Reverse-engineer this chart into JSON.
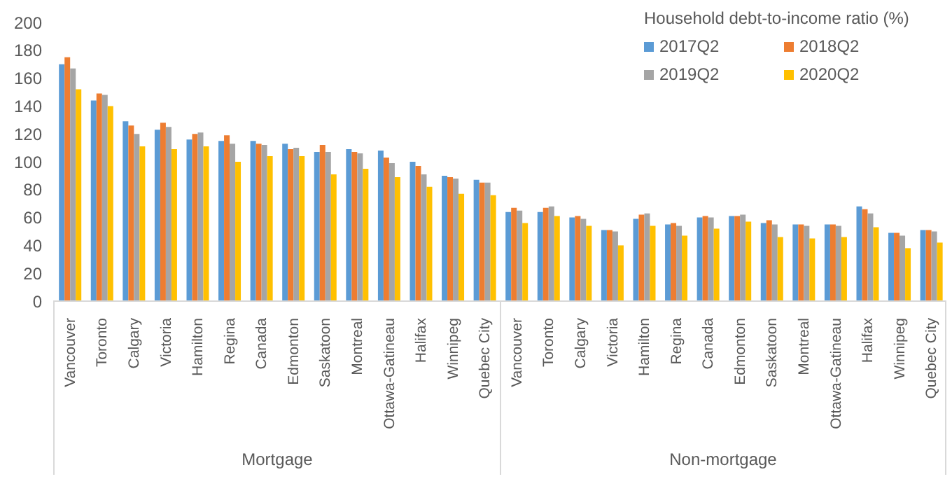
{
  "chart_data": {
    "type": "bar",
    "legend_title": "Household debt-to-income ratio (%)",
    "categories": [
      "Vancouver",
      "Toronto",
      "Calgary",
      "Victoria",
      "Hamilton",
      "Regina",
      "Canada",
      "Edmonton",
      "Saskatoon",
      "Montreal",
      "Ottawa-Gatineau",
      "Halifax",
      "Winnipeg",
      "Quebec City",
      "Vancouver",
      "Toronto",
      "Calgary",
      "Victoria",
      "Hamilton",
      "Regina",
      "Canada",
      "Edmonton",
      "Saskatoon",
      "Montreal",
      "Ottawa-Gatineau",
      "Halifax",
      "Winnipeg",
      "Quebec City"
    ],
    "series": [
      {
        "name": "2017Q2",
        "color": "#5b9bd5",
        "values": [
          170,
          144,
          129,
          123,
          116,
          115,
          115,
          113,
          107,
          109,
          108,
          100,
          90,
          87,
          64,
          64,
          60,
          51,
          59,
          55,
          60,
          61,
          56,
          55,
          55,
          68,
          49,
          51
        ]
      },
      {
        "name": "2018Q2",
        "color": "#ed7d31",
        "values": [
          175,
          149,
          126,
          128,
          120,
          119,
          113,
          109,
          112,
          107,
          103,
          97,
          89,
          85,
          67,
          67,
          61,
          51,
          62,
          56,
          61,
          61,
          58,
          55,
          55,
          66,
          49,
          51
        ]
      },
      {
        "name": "2019Q2",
        "color": "#a5a5a5",
        "values": [
          167,
          148,
          120,
          125,
          121,
          113,
          112,
          110,
          107,
          106,
          99,
          91,
          88,
          85,
          65,
          68,
          59,
          50,
          63,
          54,
          60,
          62,
          55,
          54,
          54,
          63,
          47,
          50
        ]
      },
      {
        "name": "2020Q2",
        "color": "#ffc000",
        "values": [
          152,
          140,
          111,
          109,
          111,
          100,
          104,
          104,
          91,
          95,
          89,
          82,
          77,
          76,
          56,
          61,
          54,
          40,
          54,
          47,
          52,
          57,
          46,
          45,
          46,
          53,
          38,
          42
        ]
      }
    ],
    "annotations": [
      "Mortgage",
      "Non-mortgage"
    ],
    "ylim": [
      0,
      200
    ],
    "yticks": [
      0,
      20,
      40,
      60,
      80,
      100,
      120,
      140,
      160,
      180,
      200
    ],
    "legend": "top right"
  }
}
